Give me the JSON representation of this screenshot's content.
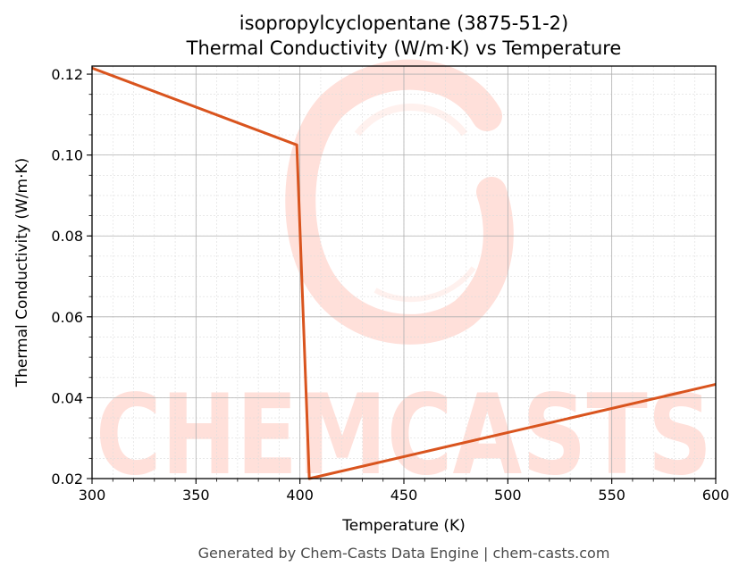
{
  "title_line1": "isopropylcyclopentane (3875-51-2)",
  "title_line2": "Thermal Conductivity (W/m·K) vs Temperature",
  "footer": "Generated by Chem-Casts Data Engine | chem-casts.com",
  "watermark": "CHEMCASTS",
  "colors": {
    "line": "#d9541e",
    "watermark": "#ffe0da",
    "grid_major": "#b0b0b0",
    "grid_minor": "#dcdcdc"
  },
  "chart_data": {
    "type": "line",
    "xlabel": "Temperature (K)",
    "ylabel": "Thermal Conductivity (W/m·K)",
    "xlim": [
      300,
      600
    ],
    "ylim": [
      0.02,
      0.122
    ],
    "xticks": [
      300,
      350,
      400,
      450,
      500,
      550,
      600
    ],
    "yticks": [
      0.02,
      0.04,
      0.06,
      0.08,
      0.1,
      0.12
    ],
    "xtick_labels": [
      "300",
      "350",
      "400",
      "450",
      "500",
      "550",
      "600"
    ],
    "ytick_labels": [
      "0.02",
      "0.04",
      "0.06",
      "0.08",
      "0.10",
      "0.12"
    ],
    "grid": true,
    "series": [
      {
        "x": [
          300,
          398.5,
          404.5,
          600
        ],
        "y": [
          0.1215,
          0.1025,
          0.02,
          0.0433
        ]
      }
    ]
  }
}
